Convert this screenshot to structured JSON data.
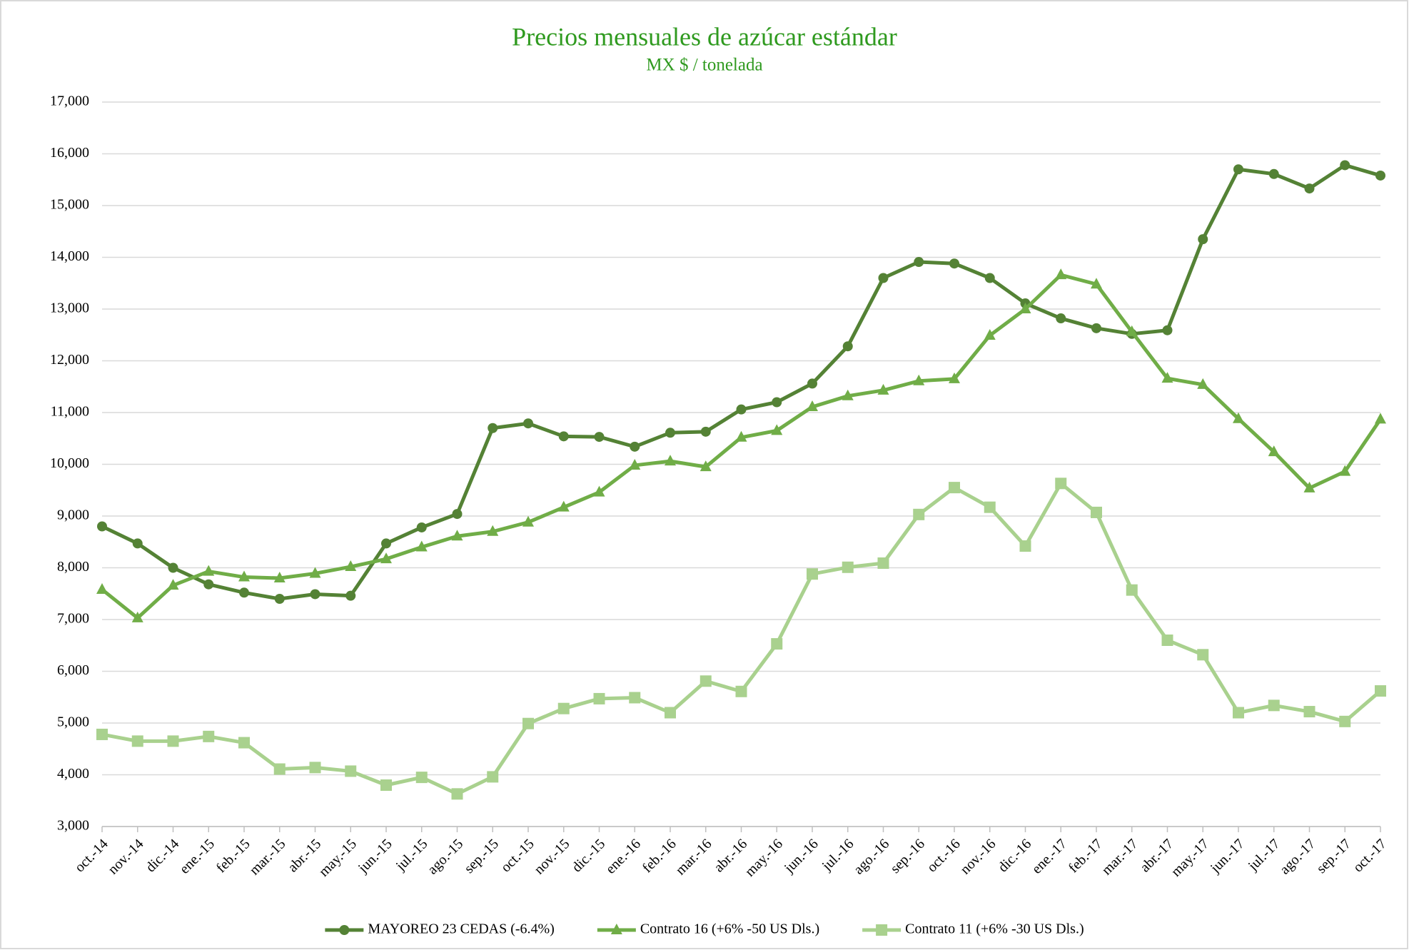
{
  "chart_data": {
    "type": "line",
    "title": "Precios mensuales de azúcar estándar",
    "subtitle": "MX $ / tonelada",
    "categories": [
      "oct.-14",
      "nov.-14",
      "dic.-14",
      "ene.-15",
      "feb.-15",
      "mar.-15",
      "abr.-15",
      "may.-15",
      "jun.-15",
      "jul.-15",
      "ago.-15",
      "sep.-15",
      "oct.-15",
      "nov.-15",
      "dic.-15",
      "ene.-16",
      "feb.-16",
      "mar.-16",
      "abr.-16",
      "may.-16",
      "jun.-16",
      "jul.-16",
      "ago.-16",
      "sep.-16",
      "oct.-16",
      "nov.-16",
      "dic.-16",
      "ene.-17",
      "feb.-17",
      "mar.-17",
      "abr.-17",
      "may.-17",
      "jun.-17",
      "jul.-17",
      "ago.-17",
      "sep.-17",
      "oct.-17"
    ],
    "series": [
      {
        "name": "MAYOREO 23 CEDAS (-6.4%)",
        "color": "#548235",
        "marker": "circle",
        "values": [
          8800,
          8470,
          8000,
          7680,
          7520,
          7400,
          7490,
          7460,
          8470,
          8780,
          9040,
          10700,
          10790,
          10540,
          10530,
          10340,
          10610,
          10630,
          11060,
          11200,
          11560,
          12280,
          13600,
          13910,
          13880,
          13600,
          13110,
          12820,
          12630,
          12520,
          12590,
          14350,
          15700,
          15610,
          15330,
          15780,
          15580
        ]
      },
      {
        "name": "Contrato 16 (+6% -50 US Dls.)",
        "color": "#70ad47",
        "marker": "triangle",
        "values": [
          7580,
          7030,
          7660,
          7930,
          7820,
          7800,
          7890,
          8020,
          8170,
          8400,
          8610,
          8700,
          8880,
          9170,
          9460,
          9980,
          10060,
          9950,
          10520,
          10650,
          11110,
          11320,
          11430,
          11610,
          11650,
          12490,
          13000,
          13660,
          13480,
          12560,
          11660,
          11540,
          10880,
          10240,
          9540,
          9860,
          10870
        ]
      },
      {
        "name": "Contrato 11 (+6% -30 US Dls.)",
        "color": "#a9d18e",
        "marker": "square",
        "values": [
          4780,
          4650,
          4650,
          4740,
          4620,
          4110,
          4140,
          4070,
          3800,
          3950,
          3630,
          3960,
          4990,
          5280,
          5470,
          5490,
          5200,
          5810,
          5610,
          6530,
          7880,
          8010,
          8090,
          9030,
          9550,
          9170,
          8420,
          9630,
          9070,
          7570,
          6600,
          6320,
          5200,
          5340,
          5220,
          5030,
          5620
        ]
      }
    ],
    "ylim": [
      3000,
      17000
    ],
    "yticks": [
      {
        "value": 3000,
        "label": "3,000"
      },
      {
        "value": 4000,
        "label": "4,000"
      },
      {
        "value": 5000,
        "label": "5,000"
      },
      {
        "value": 6000,
        "label": "6,000"
      },
      {
        "value": 7000,
        "label": "7,000"
      },
      {
        "value": 8000,
        "label": "8,000"
      },
      {
        "value": 9000,
        "label": "9,000"
      },
      {
        "value": 10000,
        "label": "10,000"
      },
      {
        "value": 11000,
        "label": "11,000"
      },
      {
        "value": 12000,
        "label": "12,000"
      },
      {
        "value": 13000,
        "label": "13,000"
      },
      {
        "value": 14000,
        "label": "14,000"
      },
      {
        "value": 15000,
        "label": "15,000"
      },
      {
        "value": 16000,
        "label": "16,000"
      },
      {
        "value": 17000,
        "label": "17,000"
      }
    ],
    "grid": true,
    "legend": "bottom"
  }
}
